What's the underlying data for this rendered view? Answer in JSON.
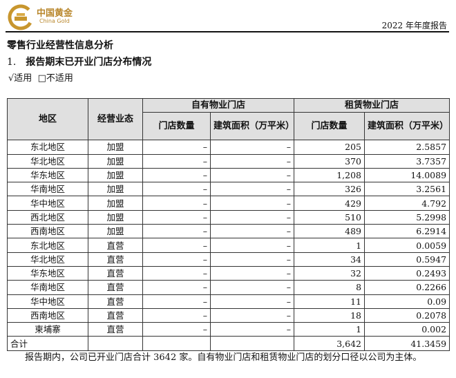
{
  "header": {
    "logo_cn": "中国黄金",
    "logo_en": "China Gold",
    "report_title": "2022 年年度报告"
  },
  "section_title": "零售行业经营性信息分析",
  "subsection": {
    "number": "1.",
    "title": "报告期末已开业门店分布情况"
  },
  "applicability": {
    "checked": "√适用",
    "unchecked": "□不适用"
  },
  "table": {
    "headers": {
      "region": "地区",
      "format": "经营业态",
      "owned": "自有物业门店",
      "leased": "租赁物业门店",
      "store_count": "门店数量",
      "area": "建筑面积（万平米）"
    },
    "rows": [
      [
        "东北地区",
        "加盟",
        "–",
        "–",
        "205",
        "2.5857"
      ],
      [
        "华北地区",
        "加盟",
        "–",
        "–",
        "370",
        "3.7357"
      ],
      [
        "华东地区",
        "加盟",
        "–",
        "–",
        "1,208",
        "14.0089"
      ],
      [
        "华南地区",
        "加盟",
        "–",
        "–",
        "326",
        "3.2561"
      ],
      [
        "华中地区",
        "加盟",
        "–",
        "–",
        "429",
        "4.792"
      ],
      [
        "西北地区",
        "加盟",
        "–",
        "–",
        "510",
        "5.2998"
      ],
      [
        "西南地区",
        "加盟",
        "–",
        "–",
        "489",
        "6.2914"
      ],
      [
        "东北地区",
        "直营",
        "–",
        "–",
        "1",
        "0.0059"
      ],
      [
        "华北地区",
        "直营",
        "–",
        "–",
        "34",
        "0.5947"
      ],
      [
        "华东地区",
        "直营",
        "–",
        "–",
        "32",
        "0.2493"
      ],
      [
        "华南地区",
        "直营",
        "–",
        "–",
        "8",
        "0.2266"
      ],
      [
        "华中地区",
        "直营",
        "–",
        "–",
        "11",
        "0.09"
      ],
      [
        "西南地区",
        "直营",
        "–",
        "–",
        "18",
        "0.2078"
      ],
      [
        "柬埔寨",
        "直营",
        "–",
        "–",
        "1",
        "0.002"
      ]
    ],
    "total": {
      "label": "合计",
      "store_count": "3,642",
      "area": "41.3459"
    }
  },
  "footnote": "报告期内，公司已开业门店合计 3642 家。自有物业门店和租赁物业门店的划分口径以公司为主体。"
}
